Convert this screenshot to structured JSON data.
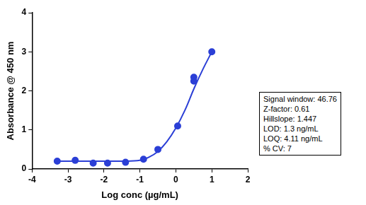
{
  "chart_data": {
    "type": "scatter",
    "x_label": "Log conc (µg/mL)",
    "y_label": "Absorbance @ 450 nm",
    "xlim": [
      -4,
      2
    ],
    "xticks": [
      -4,
      -3,
      -2,
      -1,
      0,
      1,
      2
    ],
    "ylim": [
      0,
      4
    ],
    "yticks": [
      0,
      1,
      2,
      3,
      4
    ],
    "grid": false,
    "annotations": [
      "Signal window: 46.76",
      "Z-factor: 0.61",
      "Hillslope: 1.447",
      "LOD: 1.3 ng/mL",
      "LOQ: 4.11 ng/mL",
      "% CV: 7"
    ],
    "series": [
      {
        "type": "line",
        "color": "#2b3fd6",
        "line_style": "solid",
        "x": [
          -3.3,
          -2.5,
          -2.0,
          -1.5,
          -1.0,
          -0.75,
          -0.5,
          -0.25,
          0.0,
          0.25,
          0.5,
          0.75,
          1.0
        ],
        "values": [
          0.2,
          0.2,
          0.2,
          0.2,
          0.22,
          0.3,
          0.45,
          0.7,
          1.05,
          1.5,
          2.05,
          2.55,
          3.0
        ]
      },
      {
        "type": "scatter",
        "color": "#2b3fd6",
        "marker": "circle",
        "x": [
          -3.3,
          -2.8,
          -2.3,
          -1.9,
          -1.4,
          -0.9,
          -0.5,
          0.05,
          0.5,
          0.5,
          1.0
        ],
        "values": [
          0.2,
          0.22,
          0.15,
          0.15,
          0.17,
          0.25,
          0.5,
          1.1,
          2.35,
          2.25,
          3.0
        ]
      }
    ]
  }
}
